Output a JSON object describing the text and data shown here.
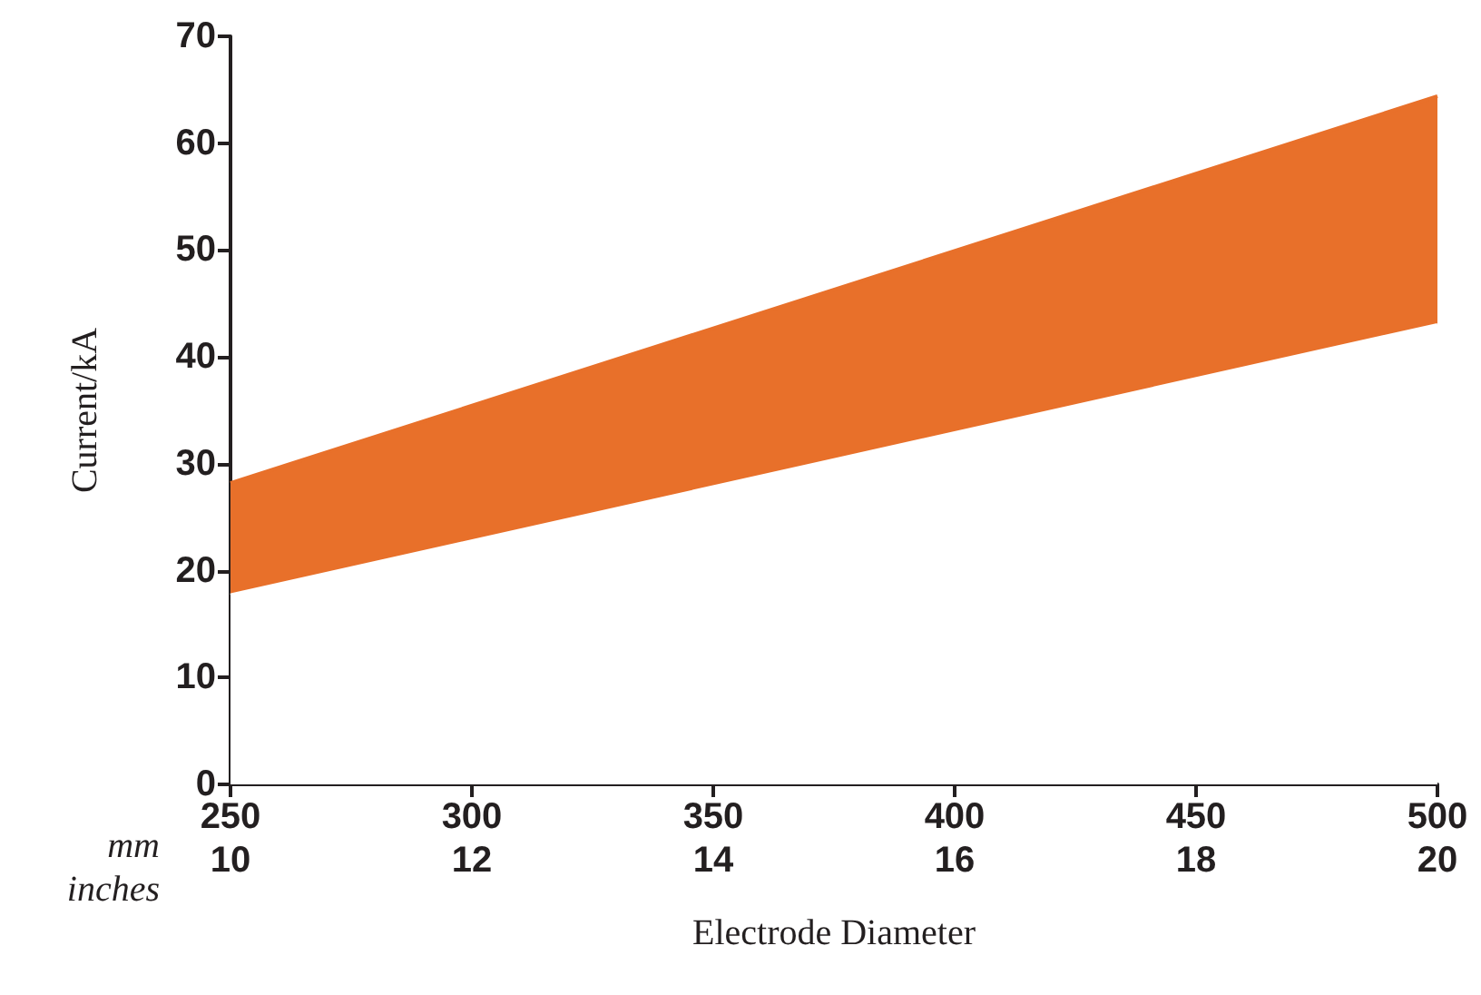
{
  "chart_data": {
    "type": "area",
    "xlabel": "Electrode Diameter",
    "ylabel": "Current/kA",
    "x": [
      250,
      500
    ],
    "series": [
      {
        "color": "#e8702a",
        "values": [
          28.2,
          64.4
        ]
      },
      {
        "color": "#ffffff",
        "values": [
          17.7,
          43.0
        ]
      }
    ],
    "xlim": [
      250,
      500
    ],
    "xticks": [
      250,
      300,
      350,
      400,
      450,
      500
    ],
    "x2lim": [
      10,
      20
    ],
    "x2ticks": [
      10,
      12,
      14,
      16,
      18,
      20
    ],
    "ylim": [
      0,
      70
    ],
    "yticks": [
      0,
      10,
      20,
      30,
      40,
      50,
      60,
      70
    ],
    "annotations": [
      "mm",
      "inches"
    ],
    "grid": false
  }
}
